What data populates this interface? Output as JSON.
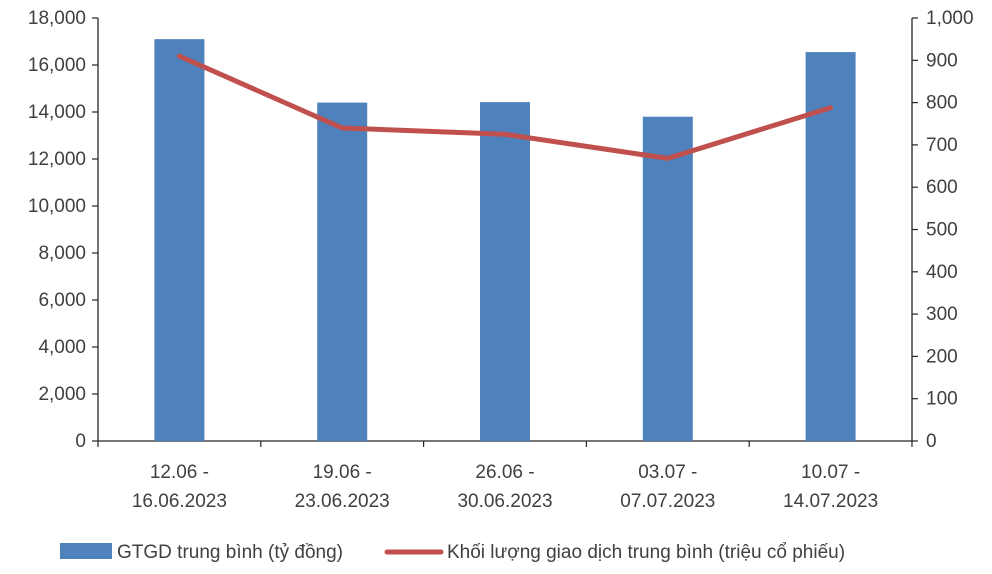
{
  "chart_data": {
    "type": "bar",
    "categories": [
      [
        "12.06 -",
        "16.06.2023"
      ],
      [
        "19.06 -",
        "23.06.2023"
      ],
      [
        "26.06 -",
        "30.06.2023"
      ],
      [
        "03.07 -",
        "07.07.2023"
      ],
      [
        "10.07 -",
        "14.07.2023"
      ]
    ],
    "series": [
      {
        "name": "GTGD trung bình (tỷ đồng)",
        "type": "bar",
        "axis": "left",
        "color": "#4F81BD",
        "values": [
          17100,
          14400,
          14420,
          13800,
          16550
        ]
      },
      {
        "name": "Khối lượng giao dịch trung bình (triệu cổ phiếu)",
        "type": "line",
        "axis": "right",
        "color": "#C0504D",
        "values": [
          910,
          740,
          725,
          668,
          788
        ]
      }
    ],
    "y_left": {
      "min": 0,
      "max": 18000,
      "step": 2000,
      "ticks": [
        "0",
        "2,000",
        "4,000",
        "6,000",
        "8,000",
        "10,000",
        "12,000",
        "14,000",
        "16,000",
        "18,000"
      ]
    },
    "y_right": {
      "min": 0,
      "max": 1000,
      "step": 100,
      "ticks": [
        "0",
        "100",
        "200",
        "300",
        "400",
        "500",
        "600",
        "700",
        "800",
        "900",
        "1,000"
      ]
    },
    "grid": false,
    "legend": "bottom",
    "title": "",
    "xlabel": "",
    "ylabel": ""
  }
}
